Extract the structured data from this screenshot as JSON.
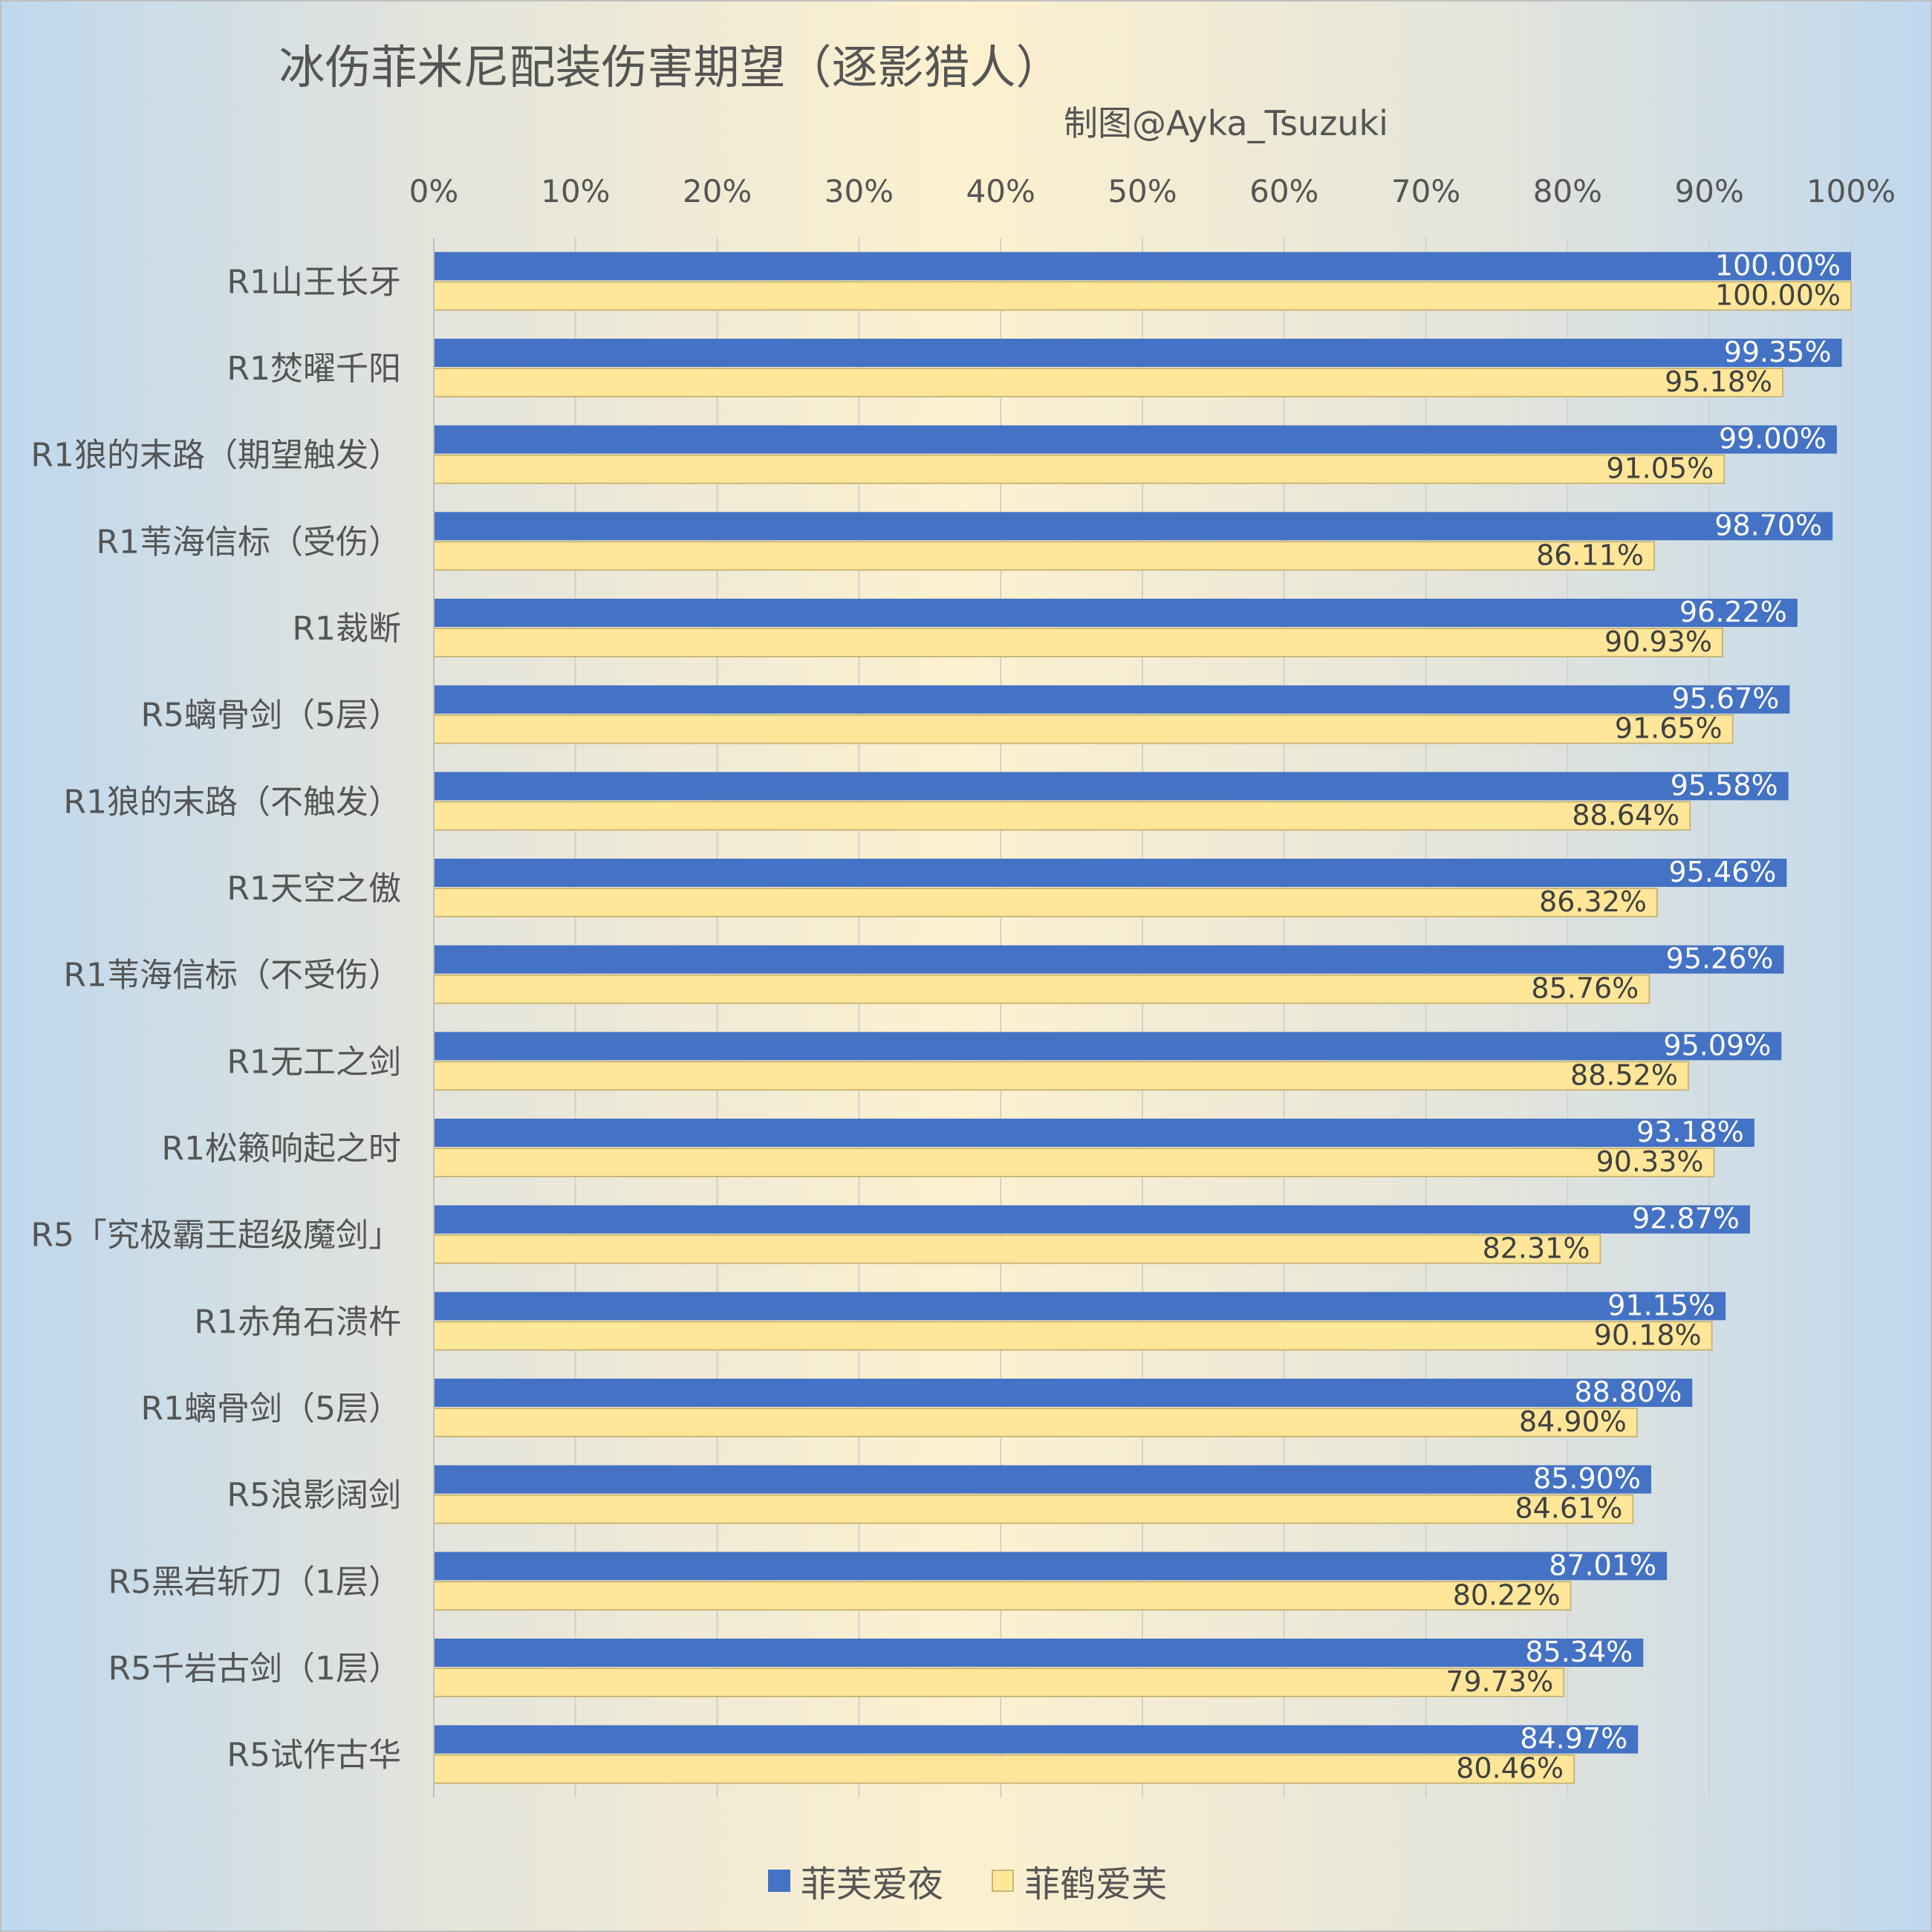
{
  "title": "冰伤菲米尼配装伤害期望（逐影猎人）",
  "subtitle": "制图@Ayka_Tsuzuki",
  "colors": {
    "series1": "#4472c4",
    "series2": "#ffe699",
    "series2_border": "#c9b779",
    "grid": "#d0d0d0"
  },
  "chart_data": {
    "type": "bar",
    "orientation": "horizontal",
    "title": "冰伤菲米尼配装伤害期望（逐影猎人）",
    "subtitle": "制图@Ayka_Tsuzuki",
    "xlim": [
      0,
      100
    ],
    "x_ticks": [
      "0%",
      "10%",
      "20%",
      "30%",
      "40%",
      "50%",
      "60%",
      "70%",
      "80%",
      "90%",
      "100%"
    ],
    "x_axis_position": "top",
    "grid": true,
    "legend_position": "bottom",
    "categories": [
      "R1山王长牙",
      "R1焚曜千阳",
      "R1狼的末路（期望触发）",
      "R1苇海信标（受伤）",
      "R1裁断",
      "R5螭骨剑（5层）",
      "R1狼的末路（不触发）",
      "R1天空之傲",
      "R1苇海信标（不受伤）",
      "R1无工之剑",
      "R1松籁响起之时",
      "R5「究极霸王超级魔剑」",
      "R1赤角石溃杵",
      "R1螭骨剑（5层）",
      "R5浪影阔剑",
      "R5黑岩斩刀（1层）",
      "R5千岩古剑（1层）",
      "R5试作古华"
    ],
    "series": [
      {
        "name": "菲芙爱夜",
        "values": [
          100.0,
          99.35,
          99.0,
          98.7,
          96.22,
          95.67,
          95.58,
          95.46,
          95.26,
          95.09,
          93.18,
          92.87,
          91.15,
          88.8,
          85.9,
          87.01,
          85.34,
          84.97
        ],
        "labels": [
          "100.00%",
          "99.35%",
          "99.00%",
          "98.70%",
          "96.22%",
          "95.67%",
          "95.58%",
          "95.46%",
          "95.26%",
          "95.09%",
          "93.18%",
          "92.87%",
          "91.15%",
          "88.80%",
          "85.90%",
          "87.01%",
          "85.34%",
          "84.97%"
        ]
      },
      {
        "name": "菲鹤爱芙",
        "values": [
          100.0,
          95.18,
          91.05,
          86.11,
          90.93,
          91.65,
          88.64,
          86.32,
          85.76,
          88.52,
          90.33,
          82.31,
          90.18,
          84.9,
          84.61,
          80.22,
          79.73,
          80.46
        ],
        "labels": [
          "100.00%",
          "95.18%",
          "91.05%",
          "86.11%",
          "90.93%",
          "91.65%",
          "88.64%",
          "86.32%",
          "85.76%",
          "88.52%",
          "90.33%",
          "82.31%",
          "90.18%",
          "84.90%",
          "84.61%",
          "80.22%",
          "79.73%",
          "80.46%"
        ]
      }
    ]
  }
}
